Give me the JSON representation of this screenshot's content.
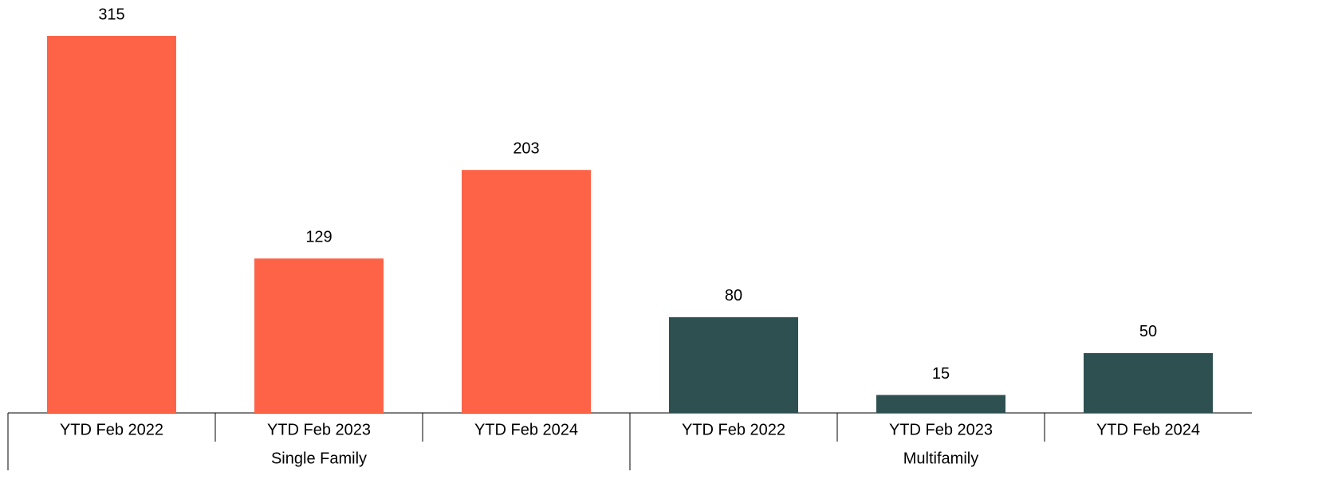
{
  "chart_data": {
    "type": "bar",
    "categories": [
      "YTD Feb 2022",
      "YTD Feb 2023",
      "YTD Feb 2024"
    ],
    "series": [
      {
        "name": "Single Family",
        "color": "#ff6347",
        "values": [
          315,
          129,
          203
        ]
      },
      {
        "name": "Multifamily",
        "color": "#2f5050",
        "values": [
          80,
          15,
          50
        ]
      }
    ]
  }
}
